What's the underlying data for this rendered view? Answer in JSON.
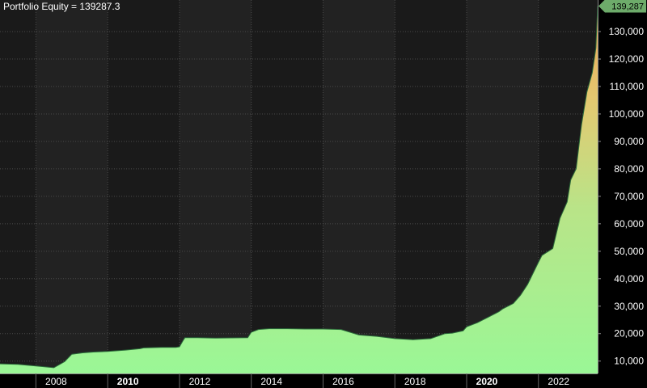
{
  "chart_data": {
    "type": "area",
    "title": "Portfolio Equity = 139287.3",
    "last_value_label": "139,287",
    "ylim": [
      5500,
      141500
    ],
    "y_ticks": [
      10000,
      20000,
      30000,
      40000,
      50000,
      60000,
      70000,
      80000,
      90000,
      100000,
      110000,
      120000,
      130000
    ],
    "y_tick_labels": [
      "10,000",
      "20,000",
      "30,000",
      "40,000",
      "50,000",
      "60,000",
      "70,000",
      "80,000",
      "90,000",
      "100,000",
      "110,000",
      "120,000",
      "130,000"
    ],
    "xlim": [
      2007.0,
      2023.65
    ],
    "x_ticks": [
      2008,
      2010,
      2012,
      2014,
      2016,
      2018,
      2020,
      2022
    ],
    "x_tick_labels": [
      "2008",
      "2010",
      "2012",
      "2014",
      "2016",
      "2018",
      "2020",
      "2022"
    ],
    "x_tick_bold": [
      "2010",
      "2020"
    ],
    "grid": true,
    "series": [
      {
        "x": [
          2007.0,
          2007.5,
          2008.0,
          2008.5,
          2008.8,
          2009.0,
          2009.3,
          2009.6,
          2010.0,
          2010.5,
          2010.9,
          2011.0,
          2011.5,
          2011.9,
          2012.0,
          2012.1,
          2012.15,
          2012.5,
          2013.0,
          2013.9,
          2014.0,
          2014.2,
          2014.5,
          2015.0,
          2015.5,
          2016.0,
          2016.5,
          2017.0,
          2017.5,
          2018.0,
          2018.5,
          2019.0,
          2019.4,
          2019.6,
          2019.9,
          2020.0,
          2020.3,
          2020.6,
          2020.9,
          2021.0,
          2021.3,
          2021.5,
          2021.7,
          2022.0,
          2022.1,
          2022.4,
          2022.6,
          2022.8,
          2022.9,
          2023.05,
          2023.2,
          2023.35,
          2023.5,
          2023.6,
          2023.65
        ],
        "y": [
          9000,
          8800,
          8200,
          7600,
          9800,
          12500,
          13000,
          13300,
          13500,
          14000,
          14500,
          14800,
          15000,
          15000,
          15200,
          17500,
          18500,
          18500,
          18400,
          18500,
          20500,
          21500,
          21800,
          21800,
          21700,
          21700,
          21500,
          19500,
          19000,
          18200,
          17800,
          18200,
          20000,
          20200,
          21000,
          22500,
          24000,
          26000,
          28000,
          29000,
          31000,
          34000,
          38000,
          46000,
          48500,
          51000,
          62000,
          68000,
          76000,
          80000,
          96000,
          108000,
          115000,
          124000,
          139287.3
        ]
      }
    ]
  }
}
